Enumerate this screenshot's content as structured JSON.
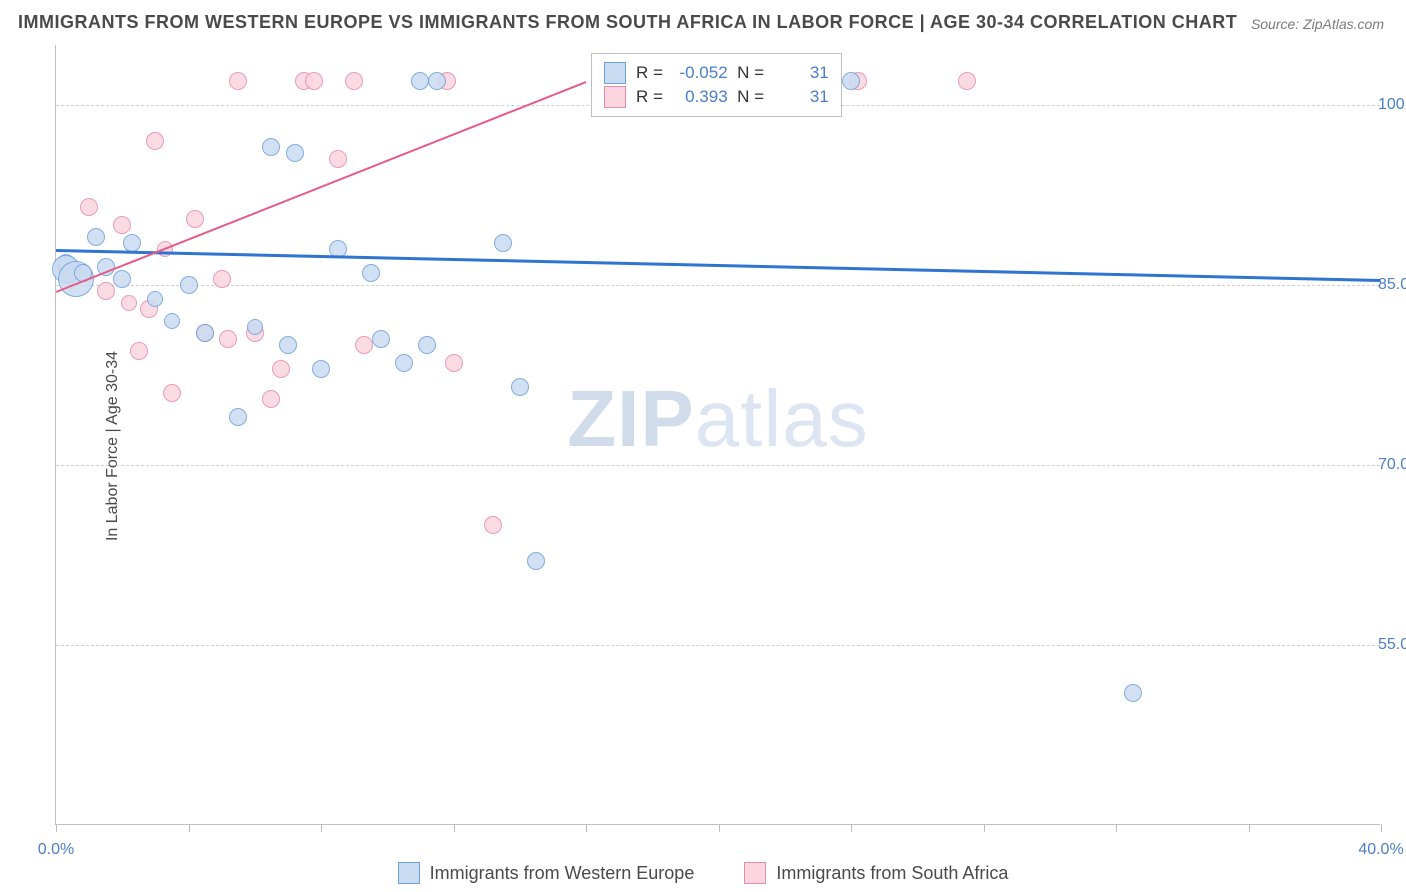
{
  "chart": {
    "type": "scatter",
    "title": "IMMIGRANTS FROM WESTERN EUROPE VS IMMIGRANTS FROM SOUTH AFRICA IN LABOR FORCE | AGE 30-34 CORRELATION CHART",
    "source": "Source: ZipAtlas.com",
    "y_axis_title": "In Labor Force | Age 30-34",
    "watermark_bold": "ZIP",
    "watermark_light": "atlas",
    "xlim": [
      0,
      40
    ],
    "ylim": [
      40,
      105
    ],
    "xtick_positions": [
      0,
      4,
      8,
      12,
      16,
      20,
      24,
      28,
      32,
      36,
      40
    ],
    "xtick_labels": {
      "0": "0.0%",
      "40": "40.0%"
    },
    "ytick_positions": [
      55,
      70,
      85,
      100
    ],
    "ytick_labels": {
      "55": "55.0%",
      "70": "70.0%",
      "85": "85.0%",
      "100": "100.0%"
    },
    "grid_color": "#d0d0d0",
    "axis_color": "#bfbfbf",
    "background_color": "#ffffff",
    "title_color": "#4a4a4a",
    "tick_label_color": "#4a7fc9",
    "tick_fontsize": 16,
    "title_fontsize": 18,
    "series": [
      {
        "name": "Immigrants from Western Europe",
        "fill": "#c9dcf2",
        "stroke": "#6f9fd8",
        "trend_color": "#2e74d0",
        "trend_width": 3,
        "R": "-0.052",
        "N": "31",
        "trend": {
          "x1": 0,
          "y1": 88.0,
          "x2": 40,
          "y2": 85.5
        },
        "points": [
          {
            "x": 0.3,
            "y": 86.8,
            "r": 9
          },
          {
            "x": 0.3,
            "y": 86.3,
            "r": 14
          },
          {
            "x": 0.6,
            "y": 85.5,
            "r": 18
          },
          {
            "x": 0.8,
            "y": 86.0,
            "r": 9
          },
          {
            "x": 1.2,
            "y": 89.0,
            "r": 9
          },
          {
            "x": 1.5,
            "y": 86.5,
            "r": 9
          },
          {
            "x": 2.0,
            "y": 85.5,
            "r": 9
          },
          {
            "x": 2.3,
            "y": 88.5,
            "r": 9
          },
          {
            "x": 3.0,
            "y": 83.8,
            "r": 8
          },
          {
            "x": 3.5,
            "y": 82.0,
            "r": 8
          },
          {
            "x": 4.0,
            "y": 85.0,
            "r": 9
          },
          {
            "x": 4.5,
            "y": 81.0,
            "r": 9
          },
          {
            "x": 5.5,
            "y": 74.0,
            "r": 9
          },
          {
            "x": 6.0,
            "y": 81.5,
            "r": 8
          },
          {
            "x": 6.5,
            "y": 96.5,
            "r": 9
          },
          {
            "x": 7.0,
            "y": 80.0,
            "r": 9
          },
          {
            "x": 7.2,
            "y": 96.0,
            "r": 9
          },
          {
            "x": 8.0,
            "y": 78.0,
            "r": 9
          },
          {
            "x": 8.5,
            "y": 88.0,
            "r": 9
          },
          {
            "x": 9.5,
            "y": 86.0,
            "r": 9
          },
          {
            "x": 9.8,
            "y": 80.5,
            "r": 9
          },
          {
            "x": 10.5,
            "y": 78.5,
            "r": 9
          },
          {
            "x": 11.0,
            "y": 102.0,
            "r": 9
          },
          {
            "x": 11.5,
            "y": 102.0,
            "r": 9
          },
          {
            "x": 11.2,
            "y": 80.0,
            "r": 9
          },
          {
            "x": 13.5,
            "y": 88.5,
            "r": 9
          },
          {
            "x": 14.0,
            "y": 76.5,
            "r": 9
          },
          {
            "x": 14.5,
            "y": 62.0,
            "r": 9
          },
          {
            "x": 19.0,
            "y": 102.0,
            "r": 9
          },
          {
            "x": 24.0,
            "y": 102.0,
            "r": 9
          },
          {
            "x": 32.5,
            "y": 51.0,
            "r": 9
          }
        ]
      },
      {
        "name": "Immigrants from South Africa",
        "fill": "#fbd5df",
        "stroke": "#e88ba4",
        "trend_color": "#e85a87",
        "trend_width": 2.5,
        "R": "0.393",
        "N": "31",
        "trend": {
          "x1": 0,
          "y1": 84.5,
          "x2": 16,
          "y2": 102.0
        },
        "points": [
          {
            "x": 0.3,
            "y": 86.5,
            "r": 9
          },
          {
            "x": 0.4,
            "y": 85.8,
            "r": 9
          },
          {
            "x": 0.5,
            "y": 86.2,
            "r": 9
          },
          {
            "x": 1.0,
            "y": 91.5,
            "r": 9
          },
          {
            "x": 1.5,
            "y": 84.5,
            "r": 9
          },
          {
            "x": 2.0,
            "y": 90.0,
            "r": 9
          },
          {
            "x": 2.2,
            "y": 83.5,
            "r": 8
          },
          {
            "x": 2.5,
            "y": 79.5,
            "r": 9
          },
          {
            "x": 2.8,
            "y": 83.0,
            "r": 9
          },
          {
            "x": 3.0,
            "y": 97.0,
            "r": 9
          },
          {
            "x": 3.3,
            "y": 88.0,
            "r": 8
          },
          {
            "x": 3.5,
            "y": 76.0,
            "r": 9
          },
          {
            "x": 4.2,
            "y": 90.5,
            "r": 9
          },
          {
            "x": 4.5,
            "y": 81.0,
            "r": 9
          },
          {
            "x": 5.0,
            "y": 85.5,
            "r": 9
          },
          {
            "x": 5.2,
            "y": 80.5,
            "r": 9
          },
          {
            "x": 5.5,
            "y": 102.0,
            "r": 9
          },
          {
            "x": 6.0,
            "y": 81.0,
            "r": 9
          },
          {
            "x": 6.5,
            "y": 75.5,
            "r": 9
          },
          {
            "x": 6.8,
            "y": 78.0,
            "r": 9
          },
          {
            "x": 7.5,
            "y": 102.0,
            "r": 9
          },
          {
            "x": 7.8,
            "y": 102.0,
            "r": 9
          },
          {
            "x": 8.5,
            "y": 95.5,
            "r": 9
          },
          {
            "x": 9.0,
            "y": 102.0,
            "r": 9
          },
          {
            "x": 9.3,
            "y": 80.0,
            "r": 9
          },
          {
            "x": 11.8,
            "y": 102.0,
            "r": 9
          },
          {
            "x": 12.0,
            "y": 78.5,
            "r": 9
          },
          {
            "x": 13.2,
            "y": 65.0,
            "r": 9
          },
          {
            "x": 19.2,
            "y": 102.0,
            "r": 9
          },
          {
            "x": 24.2,
            "y": 102.0,
            "r": 9
          },
          {
            "x": 27.5,
            "y": 102.0,
            "r": 9
          }
        ]
      }
    ],
    "stats_legend": {
      "R_label": "R =",
      "N_label": "N ="
    },
    "bottom_legend_labels": [
      "Immigrants from Western Europe",
      "Immigrants from South Africa"
    ]
  }
}
